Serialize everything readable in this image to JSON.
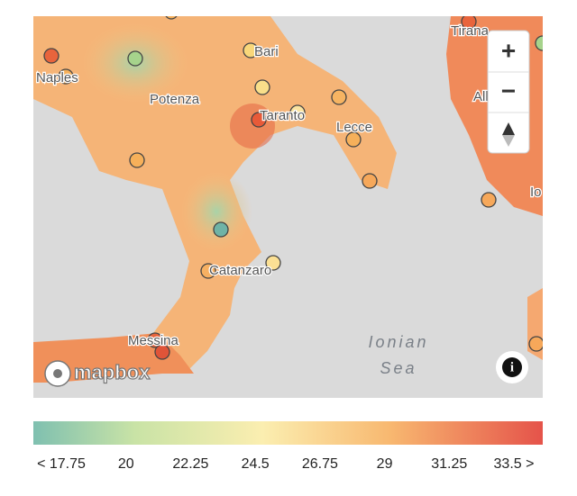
{
  "map": {
    "places": [
      "Naples",
      "Potenza",
      "Bari",
      "Taranto",
      "Lecce",
      "Catanzaro",
      "Messina",
      "Tirana",
      "Albania",
      "Io"
    ],
    "sea": [
      "Ionian",
      "Sea"
    ],
    "attribution": "mapbox",
    "zoom_in": "+",
    "zoom_out": "−",
    "info": "i"
  },
  "legend": {
    "labels": [
      "< 17.75",
      "20",
      "22.25",
      "24.5",
      "26.75",
      "29",
      "31.25",
      "33.5 >"
    ]
  }
}
